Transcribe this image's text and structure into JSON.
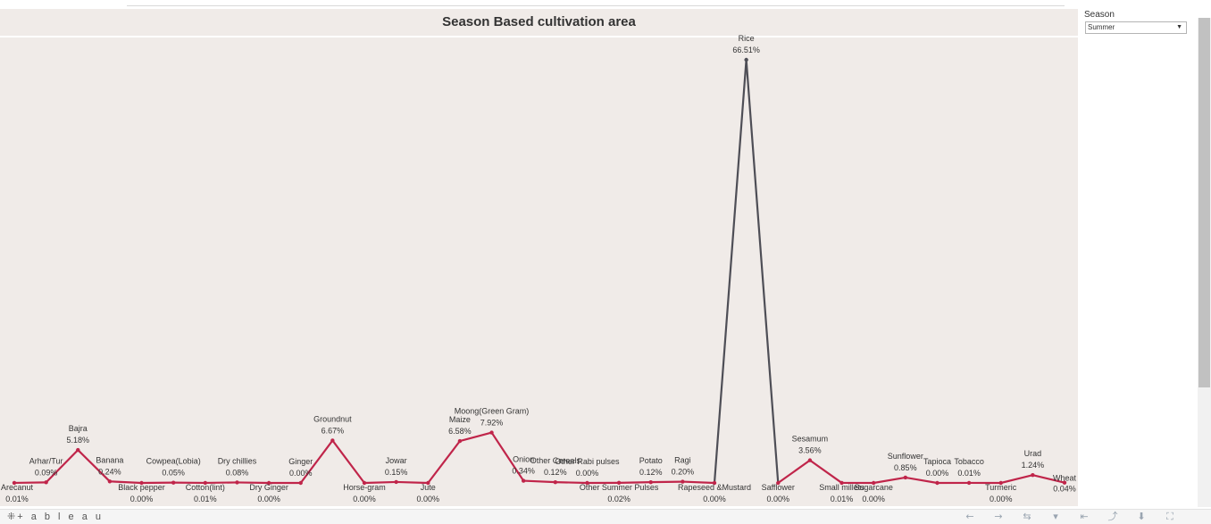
{
  "chart_data": {
    "type": "line",
    "title": "Season Based cultivation area",
    "xlabel": "",
    "ylabel": "",
    "ylim": [
      0,
      66.51
    ],
    "grid": false,
    "highlight": "Rice",
    "categories": [
      "Arecanut",
      "Arhar/Tur",
      "Bajra",
      "Banana",
      "Black pepper",
      "Cowpea(Lobia)",
      "Cotton(lint)",
      "Dry chillies",
      "Dry Ginger",
      "Ginger",
      "Groundnut",
      "Horse-gram",
      "Jowar",
      "Jute",
      "Maize",
      "Moong(Green Gram)",
      "Onion",
      "Other Cereals",
      "Other Rabi pulses",
      "Other Summer Pulses",
      "Potato",
      "Ragi",
      "Rapeseed &Mustard",
      "Rice",
      "Safflower",
      "Sesamum",
      "Small millets",
      "Sugarcane",
      "Sunflower",
      "Tapioca",
      "Tobacco",
      "Turmeric",
      "Urad",
      "Wheat"
    ],
    "values": [
      0.01,
      0.09,
      5.18,
      0.24,
      0.0,
      0.05,
      0.01,
      0.08,
      0.0,
      0.0,
      6.67,
      0.0,
      0.15,
      0.0,
      6.58,
      7.92,
      0.34,
      0.12,
      0.0,
      0.02,
      0.12,
      0.2,
      0.0,
      66.51,
      0.0,
      3.56,
      0.01,
      0.0,
      0.85,
      0.0,
      0.01,
      0.0,
      1.24,
      0.04
    ],
    "value_labels": [
      "0.01%",
      "0.09%",
      "5.18%",
      "0.24%",
      "0.00%",
      "0.05%",
      "0.01%",
      "0.08%",
      "0.00%",
      "0.00%",
      "6.67%",
      "0.00%",
      "0.15%",
      "0.00%",
      "6.58%",
      "7.92%",
      "0.34%",
      "0.12%",
      "0.00%",
      "0.02%",
      "0.12%",
      "0.20%",
      "0.00%",
      "66.51%",
      "0.00%",
      "3.56%",
      "0.01%",
      "0.00%",
      "0.85%",
      "0.00%",
      "0.01%",
      "0.00%",
      "1.24%",
      "0.04%"
    ],
    "label_side": [
      "below",
      "above",
      "above",
      "above",
      "below",
      "above",
      "below",
      "above",
      "below",
      "above",
      "above",
      "below",
      "above",
      "below",
      "above",
      "above",
      "above",
      "above",
      "above",
      "below",
      "above",
      "above",
      "below",
      "above",
      "below",
      "above",
      "below",
      "below",
      "above",
      "above",
      "above",
      "below",
      "above",
      "right"
    ],
    "colors": {
      "line": "#c0254a",
      "highlight": "#4e4e56",
      "background": "#f0ebe8"
    }
  },
  "filter": {
    "label": "Season",
    "value": "Summer"
  },
  "footer": {
    "brand": "+ a b l e a u",
    "brand_mark": "⁜",
    "toolbar": [
      "←",
      "→",
      "⇆",
      "▾",
      "⇤",
      "⤴",
      "⬇",
      "⛶"
    ]
  }
}
